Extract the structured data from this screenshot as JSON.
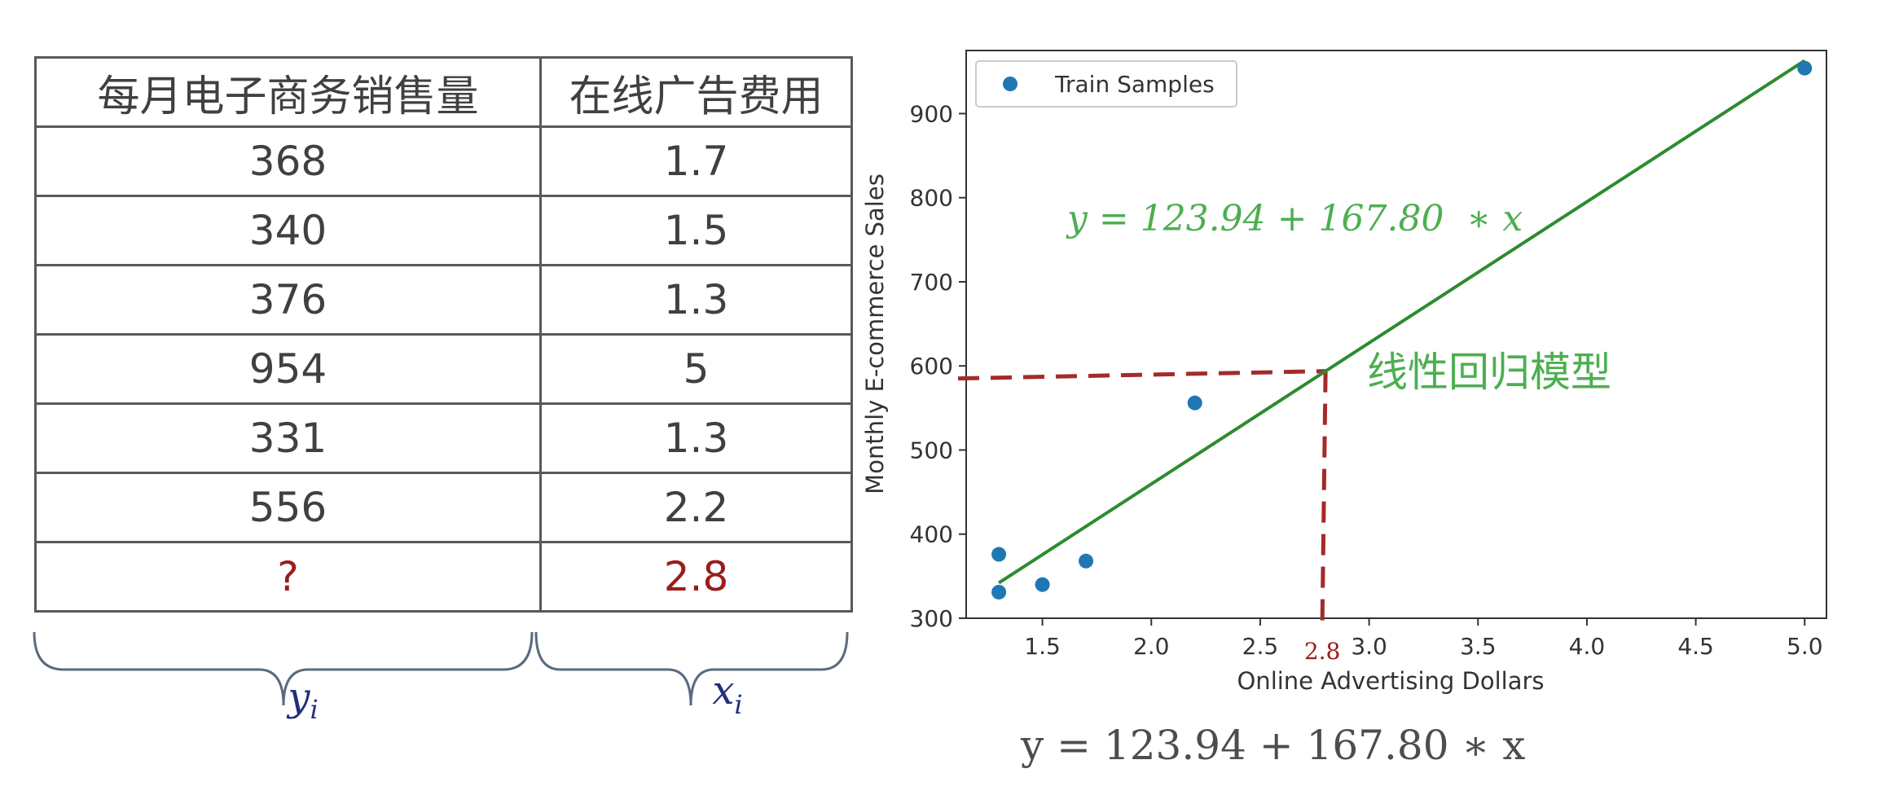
{
  "table": {
    "headers": [
      "每月电子商务销售量",
      "在线广告费用"
    ],
    "rows": [
      [
        "368",
        "1.7"
      ],
      [
        "340",
        "1.5"
      ],
      [
        "376",
        "1.3"
      ],
      [
        "954",
        "5"
      ],
      [
        "331",
        "1.3"
      ],
      [
        "556",
        "2.2"
      ],
      [
        "?",
        "2.8"
      ]
    ],
    "brace_y_label": "y",
    "brace_y_sub": "i",
    "brace_x_label": "x",
    "brace_x_sub": "i"
  },
  "chart_data": {
    "type": "scatter",
    "xlabel": "Online Advertising Dollars",
    "ylabel": "Monthly E-commerce Sales",
    "xlim": [
      1.15,
      5.1
    ],
    "ylim": [
      300,
      975
    ],
    "xticks": [
      1.5,
      2.0,
      2.5,
      3.0,
      3.5,
      4.0,
      4.5,
      5.0
    ],
    "xtick_labels": [
      "1.5",
      "2.0",
      "2.5",
      "3.0",
      "3.5",
      "4.0",
      "4.5",
      "5.0"
    ],
    "yticks": [
      300,
      400,
      500,
      600,
      700,
      800,
      900
    ],
    "ytick_labels": [
      "300",
      "400",
      "500",
      "600",
      "700",
      "800",
      "900"
    ],
    "legend": {
      "position": "top-left",
      "label": "Train Samples"
    },
    "series": [
      {
        "name": "Train Samples",
        "x": [
          1.7,
          1.5,
          1.3,
          5.0,
          1.3,
          2.2
        ],
        "y": [
          368,
          340,
          376,
          954,
          331,
          556
        ]
      }
    ],
    "regression_line": {
      "intercept": 123.94,
      "slope": 167.8,
      "x_range": [
        1.3,
        5.0
      ]
    },
    "prediction": {
      "x": 2.8,
      "y": 593.78,
      "x_label": "2.8"
    },
    "annotation": "线性回归模型",
    "equation": "y = 123.94 + 167.80  ∗ x",
    "colors": {
      "points": "#1f77b4",
      "line": "#2e8b2e",
      "equation": "#4caf50",
      "dashed": "#a52a2a"
    }
  },
  "bottom_equation": "y = 123.94 + 167.80  ∗ x"
}
